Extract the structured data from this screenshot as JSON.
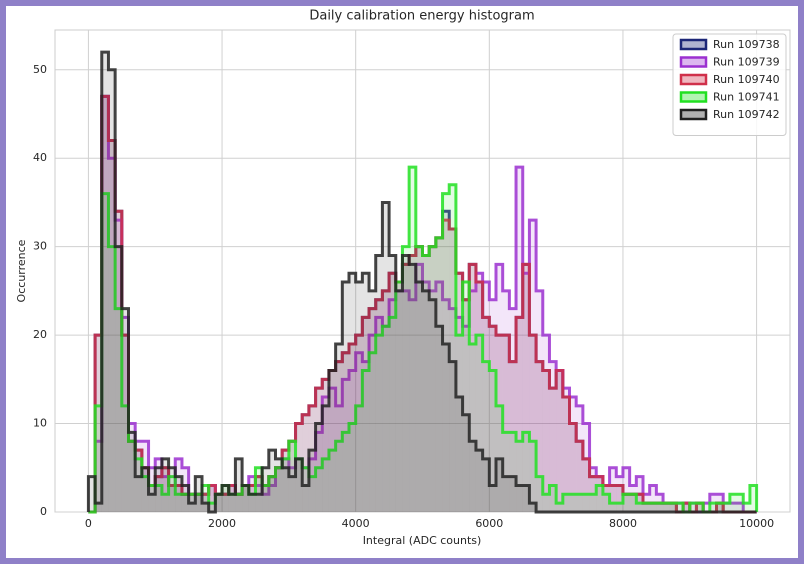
{
  "chart_data": {
    "type": "histogram",
    "title": "Daily calibration energy histogram",
    "x_label": "Integral (ADC counts)",
    "y_label": "Occurrence",
    "bins": [
      0,
      100,
      200,
      300,
      400,
      500,
      600,
      700,
      800,
      900,
      1000,
      1100,
      1200,
      1300,
      1400,
      1500,
      1600,
      1700,
      1800,
      1900,
      2000,
      2100,
      2200,
      2300,
      2400,
      2500,
      2600,
      2700,
      2800,
      2900,
      3000,
      3100,
      3200,
      3300,
      3400,
      3500,
      3600,
      3700,
      3800,
      3900,
      4000,
      4100,
      4200,
      4300,
      4400,
      4500,
      4600,
      4700,
      4800,
      4900,
      5000,
      5100,
      5200,
      5300,
      5400,
      5500,
      5600,
      5700,
      5800,
      5900,
      6000,
      6100,
      6200,
      6300,
      6400,
      6500,
      6600,
      6700,
      6800,
      6900,
      7000,
      7100,
      7200,
      7300,
      7400,
      7500,
      7600,
      7700,
      7800,
      7900,
      8000,
      8100,
      8200,
      8300,
      8400,
      8500,
      8600,
      8700,
      8800,
      8900,
      9000,
      9100,
      9200,
      9300,
      9400,
      9500,
      9600,
      9700,
      9800,
      9900,
      10000
    ],
    "series": [
      {
        "name": "Run 109738",
        "color": "#1c2677",
        "values": [
          0,
          20,
          47,
          42,
          34,
          20,
          8,
          7,
          5,
          3,
          4,
          5,
          3,
          3,
          2,
          2,
          2,
          2,
          3,
          2,
          2,
          3,
          2,
          3,
          3,
          4,
          3,
          4,
          5,
          7,
          8,
          10,
          11,
          12,
          14,
          15,
          16,
          17,
          18,
          19,
          20,
          22,
          23,
          24,
          25,
          27,
          26,
          28,
          29,
          30,
          29,
          30,
          31,
          34,
          32,
          27,
          24,
          28,
          26,
          22,
          21,
          20,
          20,
          17,
          22,
          28,
          20,
          17,
          16,
          14,
          16,
          13,
          10,
          8,
          6,
          4,
          4,
          3,
          3,
          3,
          2,
          2,
          2,
          1,
          1,
          1,
          1,
          1,
          0,
          1,
          0,
          1,
          0,
          0,
          1,
          0,
          0,
          0,
          0,
          0
        ]
      },
      {
        "name": "Run 109739",
        "color": "#9b30d0",
        "values": [
          0,
          8,
          47,
          40,
          33,
          22,
          10,
          8,
          8,
          5,
          6,
          4,
          3,
          6,
          5,
          2,
          2,
          2,
          3,
          2,
          2,
          3,
          2,
          3,
          4,
          3,
          2,
          3,
          5,
          6,
          5,
          6,
          5,
          6,
          9,
          13,
          14,
          12,
          15,
          16,
          18,
          17,
          20,
          22,
          21,
          24,
          25,
          25,
          24,
          28,
          26,
          25,
          26,
          24,
          23,
          22,
          21,
          25,
          27,
          26,
          24,
          28,
          25,
          23,
          39,
          27,
          33,
          25,
          20,
          17,
          16,
          14,
          13,
          12,
          10,
          5,
          4,
          3,
          5,
          4,
          5,
          3,
          4,
          2,
          3,
          2,
          1,
          1,
          1,
          1,
          1,
          0,
          1,
          2,
          2,
          1,
          1,
          1,
          0,
          0
        ]
      },
      {
        "name": "Run 109740",
        "color": "#d0304a",
        "values": [
          0,
          20,
          47,
          42,
          34,
          20,
          8,
          7,
          5,
          3,
          4,
          5,
          3,
          3,
          2,
          2,
          2,
          2,
          3,
          2,
          2,
          3,
          2,
          3,
          3,
          4,
          3,
          4,
          5,
          7,
          8,
          10,
          11,
          12,
          14,
          15,
          16,
          17,
          18,
          19,
          20,
          22,
          23,
          24,
          25,
          27,
          26,
          28,
          29,
          30,
          29,
          30,
          31,
          33,
          32,
          27,
          24,
          28,
          26,
          22,
          21,
          20,
          20,
          17,
          22,
          28,
          20,
          17,
          16,
          14,
          16,
          13,
          10,
          8,
          6,
          4,
          4,
          3,
          3,
          3,
          2,
          2,
          2,
          1,
          1,
          1,
          1,
          1,
          0,
          1,
          0,
          1,
          0,
          0,
          1,
          0,
          0,
          0,
          0,
          0
        ]
      },
      {
        "name": "Run 109741",
        "color": "#22e022",
        "values": [
          0,
          12,
          36,
          30,
          23,
          12,
          8,
          6,
          4,
          3,
          3,
          2,
          4,
          2,
          2,
          2,
          2,
          3,
          1,
          2,
          3,
          2,
          2,
          3,
          2,
          5,
          3,
          4,
          5,
          6,
          8,
          6,
          5,
          4,
          5,
          6,
          7,
          8,
          9,
          10,
          12,
          16,
          18,
          20,
          21,
          22,
          26,
          30,
          39,
          30,
          29,
          30,
          31,
          36,
          37,
          20,
          26,
          19,
          20,
          17,
          16,
          12,
          9,
          9,
          8,
          9,
          8,
          4,
          2,
          3,
          1,
          2,
          2,
          2,
          2,
          2,
          3,
          2,
          1,
          1,
          2,
          2,
          1,
          1,
          1,
          1,
          1,
          1,
          1,
          0,
          1,
          1,
          0,
          1,
          1,
          1,
          2,
          2,
          1,
          3
        ]
      },
      {
        "name": "Run 109742",
        "color": "#222222",
        "values": [
          4,
          1,
          52,
          50,
          30,
          23,
          9,
          4,
          5,
          2,
          5,
          6,
          5,
          4,
          3,
          1,
          4,
          1,
          0,
          2,
          3,
          2,
          6,
          3,
          2,
          2,
          5,
          7,
          6,
          5,
          4,
          6,
          3,
          7,
          10,
          12,
          16,
          19,
          26,
          27,
          26,
          27,
          25,
          29,
          35,
          29,
          25,
          29,
          28,
          26,
          25,
          24,
          21,
          19,
          17,
          13,
          11,
          8,
          7,
          6,
          3,
          6,
          4,
          4,
          3,
          3,
          1,
          0,
          0,
          0,
          0,
          0,
          0,
          0,
          0,
          0,
          0,
          0,
          0,
          0,
          0,
          0,
          0,
          0,
          0,
          0,
          0,
          0,
          0,
          0,
          0,
          0,
          0,
          0,
          0,
          0,
          0,
          0,
          0,
          0
        ]
      }
    ],
    "xlim": [
      -500,
      10500
    ],
    "ylim": [
      0,
      54.5
    ],
    "xticks": [
      0,
      2000,
      4000,
      6000,
      8000,
      10000
    ],
    "yticks": [
      0,
      10,
      20,
      30,
      40,
      50
    ],
    "grid": true,
    "legend": "upper right"
  }
}
